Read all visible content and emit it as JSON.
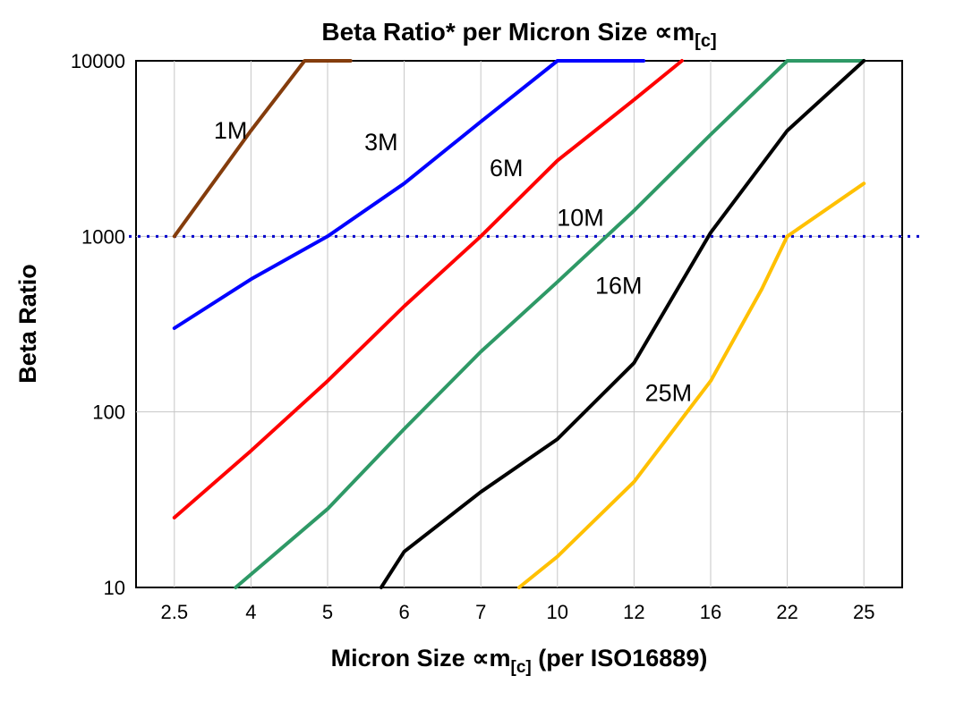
{
  "title": {
    "prefix": "Beta Ratio* per Micron Size ∝m",
    "sub": "[c]"
  },
  "axes": {
    "y_label": "Beta Ratio",
    "x_label": {
      "prefix": "Micron Size ∝m",
      "sub": "[c]",
      "suffix": " (per ISO16889)"
    },
    "x_ticks": [
      "2.5",
      "4",
      "5",
      "6",
      "7",
      "10",
      "12",
      "16",
      "22",
      "25"
    ],
    "y_ticks": [
      "10",
      "100",
      "1000",
      "10000"
    ]
  },
  "chart_data": {
    "type": "line",
    "title": "Beta Ratio* per Micron Size ∝m[c]",
    "xlabel": "Micron Size ∝m[c] (per ISO16889)",
    "ylabel": "Beta Ratio",
    "x_scale": "categorical",
    "y_scale": "log",
    "categories": [
      2.5,
      4,
      5,
      6,
      7,
      10,
      12,
      16,
      22,
      25
    ],
    "ylim": [
      10,
      10000
    ],
    "grid": {
      "show": true,
      "color": "#c6c6c6",
      "horizontal_at": [
        100,
        1000
      ]
    },
    "reference_line": {
      "y": 1000,
      "color": "#0000cc",
      "style": "dotted"
    },
    "series": [
      {
        "name": "1M",
        "color": "#843c0c",
        "label_pos": {
          "x": 3.6,
          "y": 3600
        },
        "points": [
          [
            2.5,
            1000
          ],
          [
            4,
            4000
          ],
          [
            4.7,
            10000
          ],
          [
            5.3,
            10000
          ]
        ]
      },
      {
        "name": "3M",
        "color": "#0000ff",
        "label_pos": {
          "x": 5.7,
          "y": 3100
        },
        "points": [
          [
            2.5,
            300
          ],
          [
            4,
            570
          ],
          [
            5,
            1000
          ],
          [
            6,
            2000
          ],
          [
            7,
            4500
          ],
          [
            10,
            10000
          ],
          [
            12.5,
            10000
          ]
        ]
      },
      {
        "name": "6M",
        "color": "#ff0000",
        "label_pos": {
          "x": 8.0,
          "y": 2200
        },
        "points": [
          [
            2.5,
            25
          ],
          [
            4,
            60
          ],
          [
            5,
            150
          ],
          [
            6,
            400
          ],
          [
            7,
            1000
          ],
          [
            10,
            2700
          ],
          [
            12,
            6000
          ],
          [
            14.5,
            10000
          ]
        ]
      },
      {
        "name": "10M",
        "color": "#2e9966",
        "label_pos": {
          "x": 10.6,
          "y": 1150
        },
        "points": [
          [
            3.7,
            10
          ],
          [
            5,
            28
          ],
          [
            6,
            80
          ],
          [
            7,
            220
          ],
          [
            10,
            550
          ],
          [
            12,
            1400
          ],
          [
            16,
            3800
          ],
          [
            22,
            10000
          ],
          [
            25,
            10000
          ]
        ]
      },
      {
        "name": "16M",
        "color": "#000000",
        "label_pos": {
          "x": 11.6,
          "y": 470
        },
        "points": [
          [
            5.7,
            10
          ],
          [
            6,
            16
          ],
          [
            7,
            35
          ],
          [
            10,
            70
          ],
          [
            12,
            190
          ],
          [
            16,
            1050
          ],
          [
            22,
            4000
          ],
          [
            25,
            10000
          ]
        ]
      },
      {
        "name": "25M",
        "color": "#ffc000",
        "label_pos": {
          "x": 13.8,
          "y": 115
        },
        "points": [
          [
            8.5,
            10
          ],
          [
            10,
            15
          ],
          [
            12,
            40
          ],
          [
            16,
            150
          ],
          [
            20,
            500
          ],
          [
            22,
            1000
          ],
          [
            25,
            2000
          ]
        ]
      }
    ]
  }
}
